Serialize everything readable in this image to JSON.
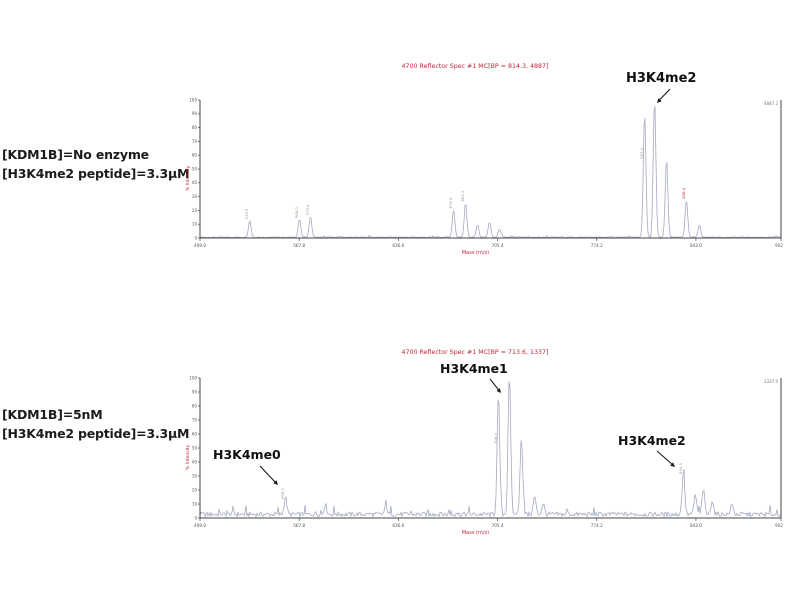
{
  "panels": [
    {
      "condition_lines": [
        "[KDM1B]=No enzyme",
        "[H3K4me2 peptide]=3.3μM"
      ]
    },
    {
      "condition_lines": [
        "[KDM1B]=5nM",
        "[H3K4me2 peptide]=3.3μM"
      ]
    }
  ],
  "chart_data": [
    {
      "type": "line",
      "title": "4700 Reflector Spec #1 MC[BP = 814.3, 4887]",
      "xlabel": "Mass (m/z)",
      "ylabel": "% Intensity",
      "xlim": [
        499.0,
        902.0
      ],
      "ylim": [
        0,
        100
      ],
      "grid": false,
      "x_ticks": [
        "499.0",
        "567.8",
        "636.6",
        "705.4",
        "774.2",
        "843.0",
        "902.0"
      ],
      "y_ticks": [
        100,
        90,
        80,
        70,
        60,
        50,
        40,
        30,
        20,
        10,
        0
      ],
      "noise_level": 0.9,
      "max_label": "4887.2",
      "peaks": [
        {
          "mz": 533.5,
          "intensity": 12,
          "label": "533.5"
        },
        {
          "mz": 568.0,
          "intensity": 13,
          "label": "568.0"
        },
        {
          "mz": 575.6,
          "intensity": 15,
          "label": "575.6"
        },
        {
          "mz": 674.9,
          "intensity": 20,
          "label": "674.9"
        },
        {
          "mz": 683.2,
          "intensity": 25,
          "label": "683.2"
        },
        {
          "mz": 691.5,
          "intensity": 9
        },
        {
          "mz": 699.8,
          "intensity": 11
        },
        {
          "mz": 706.7,
          "intensity": 6
        },
        {
          "mz": 807.4,
          "intensity": 90,
          "label": "807.4"
        },
        {
          "mz": 814.3,
          "intensity": 100
        },
        {
          "mz": 822.6,
          "intensity": 57
        },
        {
          "mz": 836.4,
          "intensity": 27,
          "label": "836.4",
          "label_color": "#c2293a"
        },
        {
          "mz": 845.4,
          "intensity": 9
        }
      ],
      "annotations": [
        {
          "text": "H3K4me2",
          "target_mz": 814.3
        }
      ]
    },
    {
      "type": "line",
      "title": "4700 Reflector Spec #1 MC[BP = 713.6, 1337]",
      "xlabel": "Mass (m/z)",
      "ylabel": "% Intensity",
      "xlim": [
        499.0,
        902.0
      ],
      "ylim": [
        0,
        100
      ],
      "grid": false,
      "x_ticks": [
        "499.0",
        "567.8",
        "636.6",
        "705.4",
        "774.2",
        "843.0",
        "902.0"
      ],
      "y_ticks": [
        100,
        90,
        80,
        70,
        60,
        50,
        40,
        30,
        20,
        10,
        0
      ],
      "noise_level": 4.2,
      "max_label": "1337.0",
      "peaks": [
        {
          "mz": 558.3,
          "intensity": 12,
          "label": "558.3"
        },
        {
          "mz": 586.0,
          "intensity": 7
        },
        {
          "mz": 628.0,
          "intensity": 6
        },
        {
          "mz": 706.0,
          "intensity": 85,
          "label": "706.0"
        },
        {
          "mz": 713.6,
          "intensity": 100
        },
        {
          "mz": 721.9,
          "intensity": 55
        },
        {
          "mz": 731.1,
          "intensity": 13
        },
        {
          "mz": 737.0,
          "intensity": 8
        },
        {
          "mz": 834.3,
          "intensity": 30,
          "label": "834.3"
        },
        {
          "mz": 842.6,
          "intensity": 14
        },
        {
          "mz": 848.1,
          "intensity": 18
        },
        {
          "mz": 854.3,
          "intensity": 10
        },
        {
          "mz": 868.0,
          "intensity": 7
        }
      ],
      "annotations": [
        {
          "text": "H3K4me0",
          "target_mz": 558.3
        },
        {
          "text": "H3K4me1",
          "target_mz": 713.6
        },
        {
          "text": "H3K4me2",
          "target_mz": 834.3
        }
      ]
    }
  ]
}
